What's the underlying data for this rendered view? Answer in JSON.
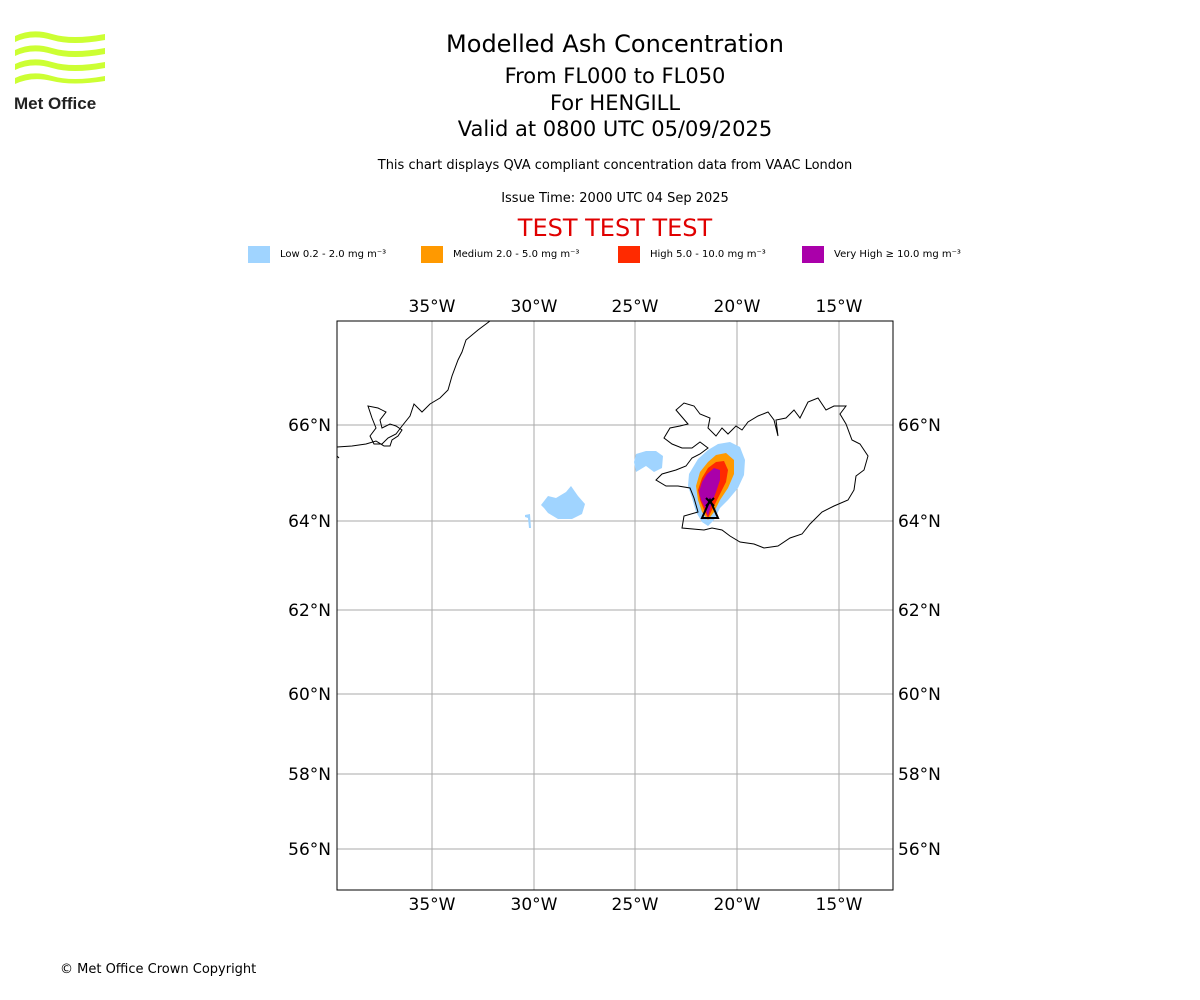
{
  "header": {
    "title": "Modelled Ash Concentration",
    "levels": "From FL000 to FL050",
    "volcano": "For HENGILL",
    "valid": "Valid at 0800 UTC 05/09/2025",
    "description": "This chart displays QVA compliant concentration data from VAAC London",
    "issue_time": "Issue Time: 2000 UTC 04 Sep 2025",
    "test_banner": "TEST TEST TEST"
  },
  "logo": {
    "text": "Met Office",
    "wave_color": "#ccff33"
  },
  "legend": [
    {
      "label": "Low 0.2 - 2.0 mg m⁻³",
      "color": "#a0d4ff"
    },
    {
      "label": "Medium 2.0 - 5.0 mg m⁻³",
      "color": "#ff9900"
    },
    {
      "label": "High 5.0 - 10.0 mg m⁻³",
      "color": "#ff2a00"
    },
    {
      "label": "Very High ≥ 10.0 mg m⁻³",
      "color": "#aa00aa"
    }
  ],
  "map": {
    "lon_labels": [
      "35°W",
      "30°W",
      "25°W",
      "20°W",
      "15°W"
    ],
    "lat_labels": [
      "66°N",
      "64°N",
      "62°N",
      "60°N",
      "58°N",
      "56°N"
    ]
  },
  "footer": {
    "copyright": "© Met Office Crown Copyright"
  }
}
